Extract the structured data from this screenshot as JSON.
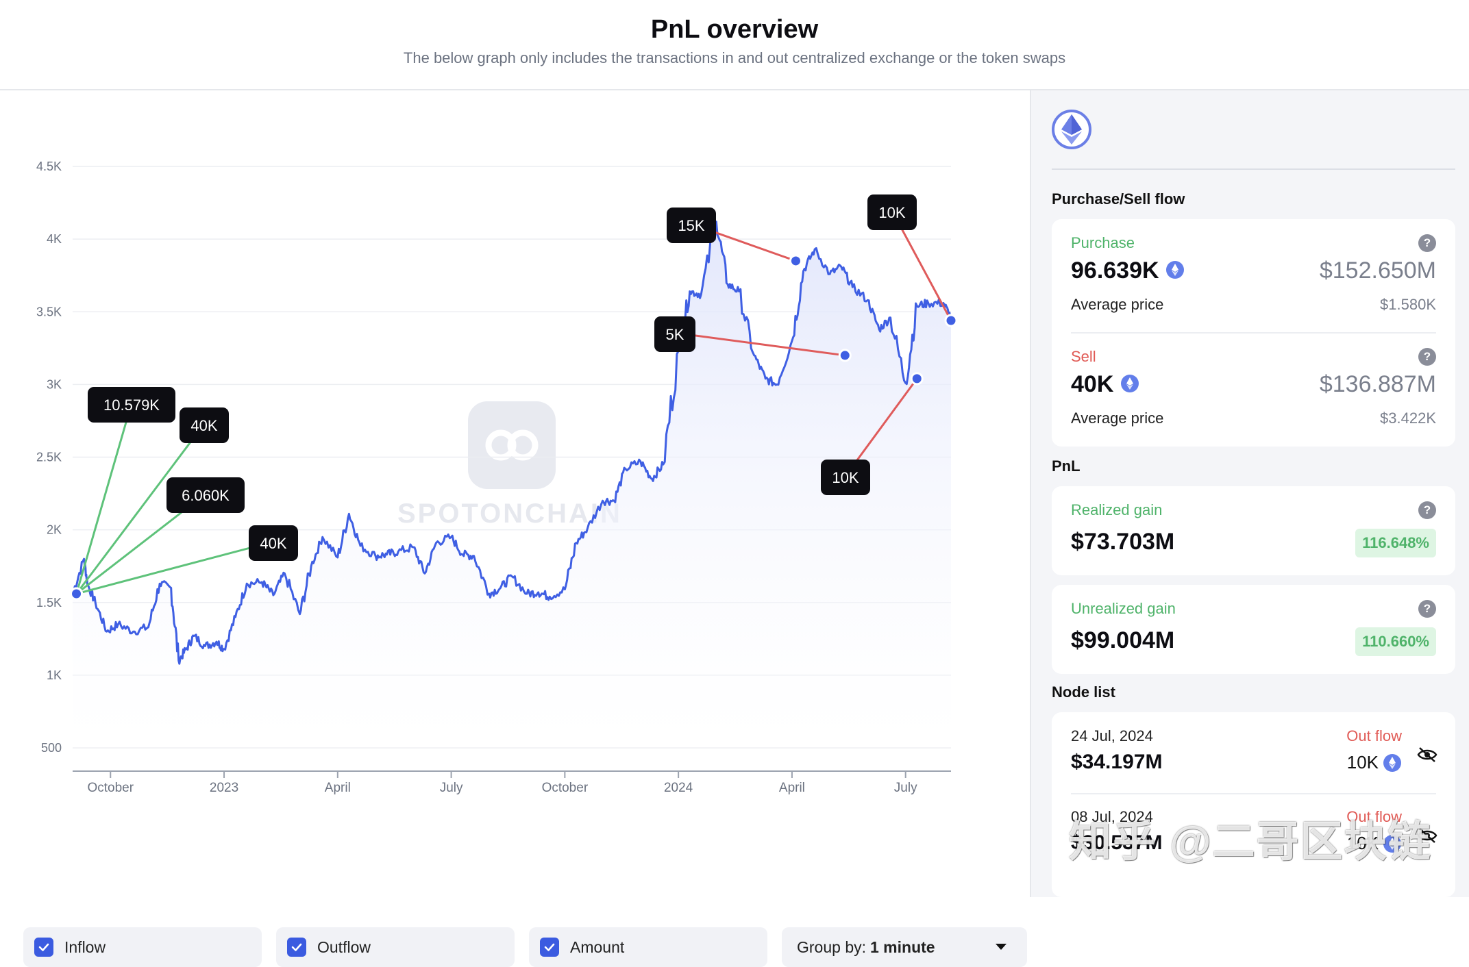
{
  "header": {
    "title": "PnL overview",
    "subtitle": "The below graph only includes the transactions in and out centralized exchange or the token swaps"
  },
  "watermark_logo_text": "SPOTONCHAIN",
  "controls": {
    "inflow_label": "Inflow",
    "outflow_label": "Outflow",
    "amount_label": "Amount",
    "group_by_label": "Group by:",
    "group_by_value": "1 minute"
  },
  "chart_data": {
    "type": "line",
    "y_tick_labels": [
      "4.5K",
      "4K",
      "3.5K",
      "3K",
      "2.5K",
      "2K",
      "1.5K",
      "1K",
      "500"
    ],
    "y_tick_values": [
      4500,
      4000,
      3500,
      3000,
      2500,
      2000,
      1500,
      1000,
      500
    ],
    "x_tick_labels": [
      "October",
      "2023",
      "April",
      "July",
      "October",
      "2024",
      "April",
      "July"
    ],
    "ylim": [
      500,
      4500
    ],
    "xlim_months": [
      0,
      23.2
    ],
    "x_tick_months": [
      1,
      4,
      7,
      10,
      13,
      16,
      19,
      22
    ],
    "grid": true,
    "series": [
      {
        "x": [
          0,
          0.3,
          0.4,
          0.6,
          0.9,
          1.2,
          1.6,
          2.0,
          2.3,
          2.6,
          2.8,
          3.0,
          3.2,
          3.5,
          3.8,
          4.0,
          4.3,
          4.6,
          5.0,
          5.3,
          5.6,
          6.0,
          6.3,
          6.6,
          7.0,
          7.3,
          7.6,
          8.0,
          8.3,
          8.6,
          9.0,
          9.3,
          9.6,
          10.0,
          10.3,
          10.6,
          11.0,
          11.3,
          11.6,
          12.0,
          12.3,
          12.6,
          13.0,
          13.3,
          13.6,
          14.0,
          14.3,
          14.6,
          15.0,
          15.3,
          15.6,
          16.0,
          16.3,
          16.6,
          17.0,
          17.3,
          17.6,
          18.0,
          18.3,
          18.6,
          19.0,
          19.3,
          19.6,
          20.0,
          20.3,
          20.6,
          21.0,
          21.3,
          21.6,
          22.0,
          22.3,
          22.6,
          23.0,
          23.2
        ],
        "y": [
          1560,
          1800,
          1620,
          1500,
          1300,
          1350,
          1300,
          1330,
          1630,
          1600,
          1100,
          1180,
          1270,
          1200,
          1230,
          1180,
          1400,
          1630,
          1640,
          1550,
          1700,
          1420,
          1750,
          1950,
          1810,
          2110,
          1890,
          1820,
          1830,
          1850,
          1880,
          1700,
          1910,
          1950,
          1830,
          1820,
          1560,
          1600,
          1680,
          1560,
          1570,
          1540,
          1590,
          1910,
          2010,
          2200,
          2200,
          2420,
          2470,
          2350,
          2450,
          3230,
          3640,
          3620,
          4120,
          3690,
          3640,
          3200,
          3040,
          3000,
          3300,
          3780,
          3930,
          3760,
          3810,
          3670,
          3580,
          3380,
          3460,
          3010,
          3540,
          3560,
          3560,
          3460
        ]
      }
    ],
    "markers": [
      {
        "label": "10.579K",
        "flow": "in",
        "x": 0.1,
        "y": 1560
      },
      {
        "label": "40K",
        "flow": "in",
        "x": 0.1,
        "y": 1560
      },
      {
        "label": "6.060K",
        "flow": "in",
        "x": 0.1,
        "y": 1560
      },
      {
        "label": "40K",
        "flow": "in",
        "x": 0.1,
        "y": 1560
      },
      {
        "label": "15K",
        "flow": "out",
        "x": 19.1,
        "y": 3850
      },
      {
        "label": "5K",
        "flow": "out",
        "x": 20.4,
        "y": 3200
      },
      {
        "label": "10K",
        "flow": "out",
        "x": 22.3,
        "y": 3040
      },
      {
        "label": "10K",
        "flow": "out",
        "x": 23.2,
        "y": 3440
      }
    ],
    "colors": {
      "line": "#3f5fe3",
      "area_top": "#dfe4fb",
      "inflow": "#5ec27a",
      "outflow": "#df5b5b",
      "marker_dot": "#3f5fe3",
      "tooltip_bg": "#0d0d12"
    }
  },
  "sidebar": {
    "token_icon": "ethereum-icon",
    "flow_title": "Purchase/Sell flow",
    "purchase": {
      "label": "Purchase",
      "amount": "96.639K",
      "usd": "$152.650M",
      "avg_label": "Average price",
      "avg_value": "$1.580K"
    },
    "sell": {
      "label": "Sell",
      "amount": "40K",
      "usd": "$136.887M",
      "avg_label": "Average price",
      "avg_value": "$3.422K"
    },
    "pnl_title": "PnL",
    "realized": {
      "label": "Realized gain",
      "value": "$73.703M",
      "pct": "116.648%"
    },
    "unrealized": {
      "label": "Unrealized gain",
      "value": "$99.004M",
      "pct": "110.660%"
    },
    "node_title": "Node list",
    "nodes": [
      {
        "date": "24 Jul, 2024",
        "flow": "Out flow",
        "usd": "$34.197M",
        "amount": "10K"
      },
      {
        "date": "08 Jul, 2024",
        "flow": "Out flow",
        "usd": "$30.537M",
        "amount": "10K"
      }
    ],
    "qmark": "?"
  },
  "overlay_watermark": "知乎 @二哥区块链"
}
